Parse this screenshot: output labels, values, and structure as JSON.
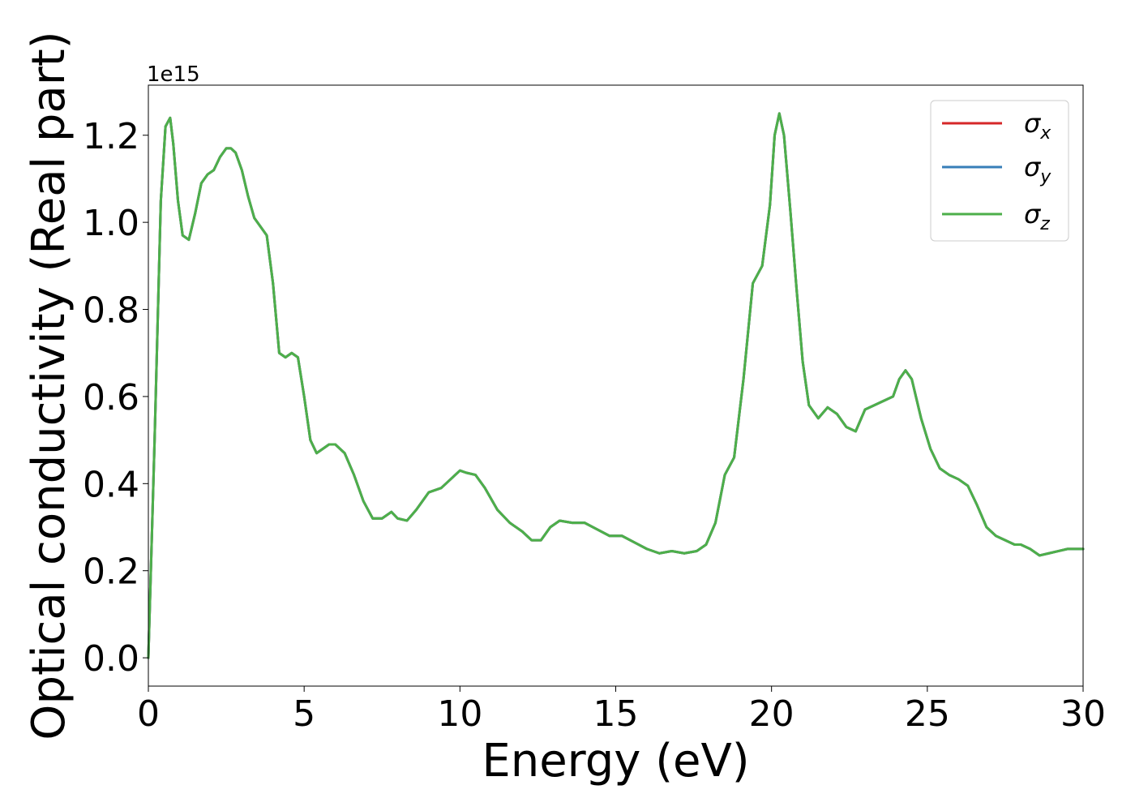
{
  "chart_data": {
    "type": "line",
    "title": "",
    "xlabel": "Energy (eV)",
    "ylabel": "Optical conductivity (Real part)",
    "y_offset_text": "1e15",
    "xlim": [
      0,
      30
    ],
    "ylim": [
      -0.065,
      1.315
    ],
    "x_ticks": [
      0,
      5,
      10,
      15,
      20,
      25,
      30
    ],
    "x_tick_labels": [
      "0",
      "5",
      "10",
      "15",
      "20",
      "25",
      "30"
    ],
    "y_ticks": [
      0.0,
      0.2,
      0.4,
      0.6,
      0.8,
      1.0,
      1.2
    ],
    "y_tick_labels": [
      "0.0",
      "0.2",
      "0.4",
      "0.6",
      "0.8",
      "1.0",
      "1.2"
    ],
    "grid": false,
    "legend_position": "top-right",
    "x": [
      0,
      0.2,
      0.4,
      0.55,
      0.7,
      0.8,
      0.95,
      1.1,
      1.3,
      1.5,
      1.7,
      1.9,
      2.1,
      2.3,
      2.5,
      2.65,
      2.8,
      3.0,
      3.2,
      3.4,
      3.6,
      3.8,
      4.0,
      4.2,
      4.4,
      4.6,
      4.8,
      5.0,
      5.2,
      5.4,
      5.6,
      5.8,
      6.0,
      6.3,
      6.6,
      6.9,
      7.2,
      7.5,
      7.8,
      8.0,
      8.3,
      8.6,
      9.0,
      9.4,
      9.7,
      10.0,
      10.2,
      10.5,
      10.8,
      11.2,
      11.6,
      12.0,
      12.3,
      12.6,
      12.9,
      13.2,
      13.6,
      14.0,
      14.4,
      14.8,
      15.2,
      15.6,
      16.0,
      16.4,
      16.8,
      17.2,
      17.6,
      17.9,
      18.2,
      18.5,
      18.8,
      19.1,
      19.4,
      19.7,
      19.95,
      20.1,
      20.25,
      20.4,
      20.6,
      20.8,
      21.0,
      21.2,
      21.5,
      21.8,
      22.1,
      22.4,
      22.7,
      23.0,
      23.3,
      23.6,
      23.9,
      24.1,
      24.3,
      24.5,
      24.8,
      25.1,
      25.4,
      25.7,
      26.0,
      26.3,
      26.6,
      26.9,
      27.2,
      27.5,
      27.8,
      28.0,
      28.3,
      28.6,
      28.9,
      29.2,
      29.5,
      29.8,
      30.0
    ],
    "series": [
      {
        "name": "σx",
        "color": "#d62728",
        "values": [
          0.0,
          0.5,
          1.05,
          1.22,
          1.24,
          1.18,
          1.05,
          0.97,
          0.96,
          1.02,
          1.09,
          1.11,
          1.12,
          1.15,
          1.17,
          1.17,
          1.16,
          1.12,
          1.06,
          1.01,
          0.99,
          0.97,
          0.86,
          0.7,
          0.69,
          0.7,
          0.69,
          0.6,
          0.5,
          0.47,
          0.48,
          0.49,
          0.49,
          0.47,
          0.42,
          0.36,
          0.32,
          0.32,
          0.335,
          0.32,
          0.315,
          0.34,
          0.38,
          0.39,
          0.41,
          0.43,
          0.425,
          0.42,
          0.39,
          0.34,
          0.31,
          0.29,
          0.27,
          0.27,
          0.3,
          0.315,
          0.31,
          0.31,
          0.295,
          0.28,
          0.28,
          0.265,
          0.25,
          0.24,
          0.245,
          0.24,
          0.245,
          0.26,
          0.31,
          0.42,
          0.46,
          0.64,
          0.86,
          0.9,
          1.04,
          1.2,
          1.25,
          1.2,
          1.03,
          0.85,
          0.68,
          0.58,
          0.55,
          0.575,
          0.56,
          0.53,
          0.52,
          0.57,
          0.58,
          0.59,
          0.6,
          0.64,
          0.66,
          0.64,
          0.55,
          0.48,
          0.435,
          0.42,
          0.41,
          0.395,
          0.35,
          0.3,
          0.28,
          0.27,
          0.26,
          0.26,
          0.25,
          0.235,
          0.24,
          0.245,
          0.25,
          0.25,
          0.25
        ]
      },
      {
        "name": "σy",
        "color": "#377eb8",
        "values": [
          0.0,
          0.5,
          1.05,
          1.22,
          1.24,
          1.18,
          1.05,
          0.97,
          0.96,
          1.02,
          1.09,
          1.11,
          1.12,
          1.15,
          1.17,
          1.17,
          1.16,
          1.12,
          1.06,
          1.01,
          0.99,
          0.97,
          0.86,
          0.7,
          0.69,
          0.7,
          0.69,
          0.6,
          0.5,
          0.47,
          0.48,
          0.49,
          0.49,
          0.47,
          0.42,
          0.36,
          0.32,
          0.32,
          0.335,
          0.32,
          0.315,
          0.34,
          0.38,
          0.39,
          0.41,
          0.43,
          0.425,
          0.42,
          0.39,
          0.34,
          0.31,
          0.29,
          0.27,
          0.27,
          0.3,
          0.315,
          0.31,
          0.31,
          0.295,
          0.28,
          0.28,
          0.265,
          0.25,
          0.24,
          0.245,
          0.24,
          0.245,
          0.26,
          0.31,
          0.42,
          0.46,
          0.64,
          0.86,
          0.9,
          1.04,
          1.2,
          1.25,
          1.2,
          1.03,
          0.85,
          0.68,
          0.58,
          0.55,
          0.575,
          0.56,
          0.53,
          0.52,
          0.57,
          0.58,
          0.59,
          0.6,
          0.64,
          0.66,
          0.64,
          0.55,
          0.48,
          0.435,
          0.42,
          0.41,
          0.395,
          0.35,
          0.3,
          0.28,
          0.27,
          0.26,
          0.26,
          0.25,
          0.235,
          0.24,
          0.245,
          0.25,
          0.25,
          0.25
        ]
      },
      {
        "name": "σz",
        "color": "#4daf4a",
        "values": [
          0.0,
          0.5,
          1.05,
          1.22,
          1.24,
          1.18,
          1.05,
          0.97,
          0.96,
          1.02,
          1.09,
          1.11,
          1.12,
          1.15,
          1.17,
          1.17,
          1.16,
          1.12,
          1.06,
          1.01,
          0.99,
          0.97,
          0.86,
          0.7,
          0.69,
          0.7,
          0.69,
          0.6,
          0.5,
          0.47,
          0.48,
          0.49,
          0.49,
          0.47,
          0.42,
          0.36,
          0.32,
          0.32,
          0.335,
          0.32,
          0.315,
          0.34,
          0.38,
          0.39,
          0.41,
          0.43,
          0.425,
          0.42,
          0.39,
          0.34,
          0.31,
          0.29,
          0.27,
          0.27,
          0.3,
          0.315,
          0.31,
          0.31,
          0.295,
          0.28,
          0.28,
          0.265,
          0.25,
          0.24,
          0.245,
          0.24,
          0.245,
          0.26,
          0.31,
          0.42,
          0.46,
          0.64,
          0.86,
          0.9,
          1.04,
          1.2,
          1.25,
          1.2,
          1.03,
          0.85,
          0.68,
          0.58,
          0.55,
          0.575,
          0.56,
          0.53,
          0.52,
          0.57,
          0.58,
          0.59,
          0.6,
          0.64,
          0.66,
          0.64,
          0.55,
          0.48,
          0.435,
          0.42,
          0.41,
          0.395,
          0.35,
          0.3,
          0.28,
          0.27,
          0.26,
          0.26,
          0.25,
          0.235,
          0.24,
          0.245,
          0.25,
          0.25,
          0.25
        ]
      }
    ],
    "legend": [
      {
        "symbol": "σ",
        "subscript": "x"
      },
      {
        "symbol": "σ",
        "subscript": "y"
      },
      {
        "symbol": "σ",
        "subscript": "z"
      }
    ]
  }
}
